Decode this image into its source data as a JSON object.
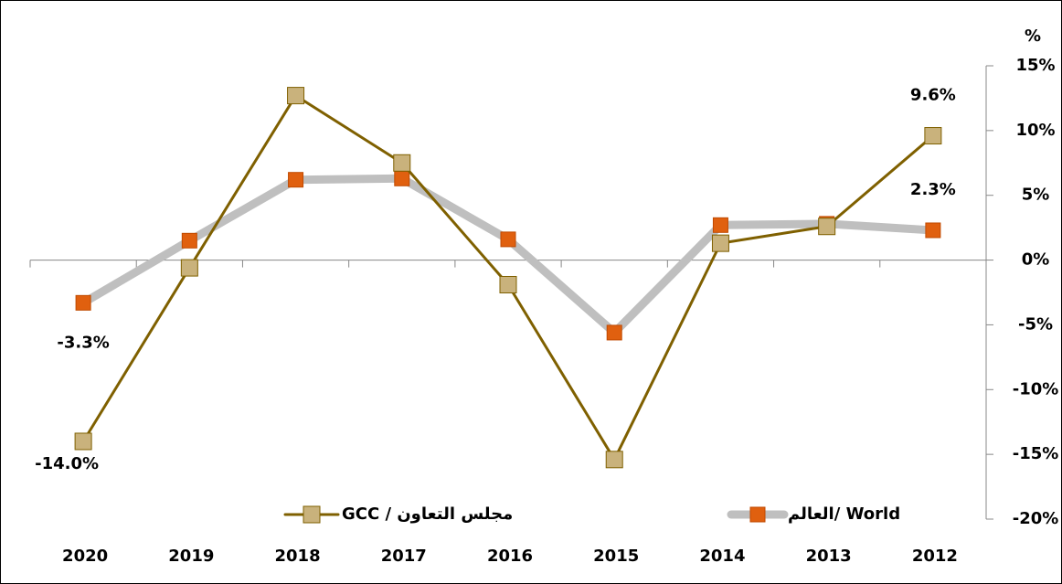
{
  "chart_data": {
    "type": "line",
    "y_label": "%",
    "categories": [
      "2020",
      "2019",
      "2018",
      "2017",
      "2016",
      "2015",
      "2014",
      "2013",
      "2012"
    ],
    "series": [
      {
        "name": "GCC / مجلس التعاون",
        "color": "#7f6000",
        "marker_color": "#c9b27c",
        "values": [
          -14.0,
          -0.6,
          12.7,
          7.5,
          -1.9,
          -15.4,
          1.3,
          2.6,
          9.6
        ],
        "value_labels": [
          "-14.0%",
          null,
          null,
          null,
          null,
          null,
          null,
          null,
          "9.6%"
        ]
      },
      {
        "name": "العالم/ World",
        "color": "#bfbfbf",
        "marker_color": "#e0600f",
        "values": [
          -3.3,
          1.5,
          6.2,
          6.3,
          1.6,
          -5.6,
          2.7,
          2.8,
          2.3
        ],
        "value_labels": [
          "-3.3%",
          null,
          null,
          null,
          null,
          null,
          null,
          null,
          "2.3%"
        ]
      }
    ],
    "ylim": [
      -20,
      15
    ],
    "yticks": [
      {
        "value": -20,
        "label": "-20%"
      },
      {
        "value": -15,
        "label": "-15%"
      },
      {
        "value": -10,
        "label": "-10%"
      },
      {
        "value": -5,
        "label": "-5%"
      },
      {
        "value": 0,
        "label": "0%"
      },
      {
        "value": 5,
        "label": "5%"
      },
      {
        "value": 10,
        "label": "10%"
      },
      {
        "value": 15,
        "label": "15%"
      }
    ]
  }
}
